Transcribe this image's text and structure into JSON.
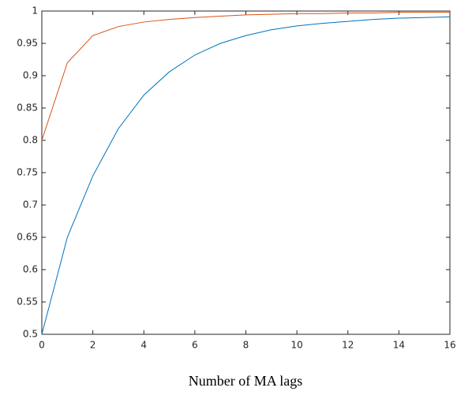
{
  "chart_data": {
    "type": "line",
    "xlabel": "Number of MA lags",
    "x": [
      0,
      1,
      2,
      3,
      4,
      5,
      6,
      7,
      8,
      9,
      10,
      11,
      12,
      13,
      14,
      15,
      16
    ],
    "series": [
      {
        "color": "#0072bd",
        "values": [
          0.5,
          0.65,
          0.745,
          0.818,
          0.87,
          0.906,
          0.932,
          0.95,
          0.962,
          0.971,
          0.977,
          0.981,
          0.984,
          0.987,
          0.989,
          0.99,
          0.991
        ]
      },
      {
        "color": "#d95319",
        "values": [
          0.8,
          0.92,
          0.962,
          0.976,
          0.983,
          0.987,
          0.99,
          0.992,
          0.994,
          0.995,
          0.996,
          0.996,
          0.997,
          0.997,
          0.998,
          0.998,
          0.998
        ]
      }
    ],
    "xlim": [
      0,
      16
    ],
    "xticks": [
      0,
      2,
      4,
      6,
      8,
      10,
      12,
      14,
      16
    ],
    "ylim": [
      0.5,
      1
    ],
    "yticks": [
      0.5,
      0.55,
      0.6,
      0.65,
      0.7,
      0.75,
      0.8,
      0.85,
      0.9,
      0.95,
      1
    ],
    "grid": false
  }
}
